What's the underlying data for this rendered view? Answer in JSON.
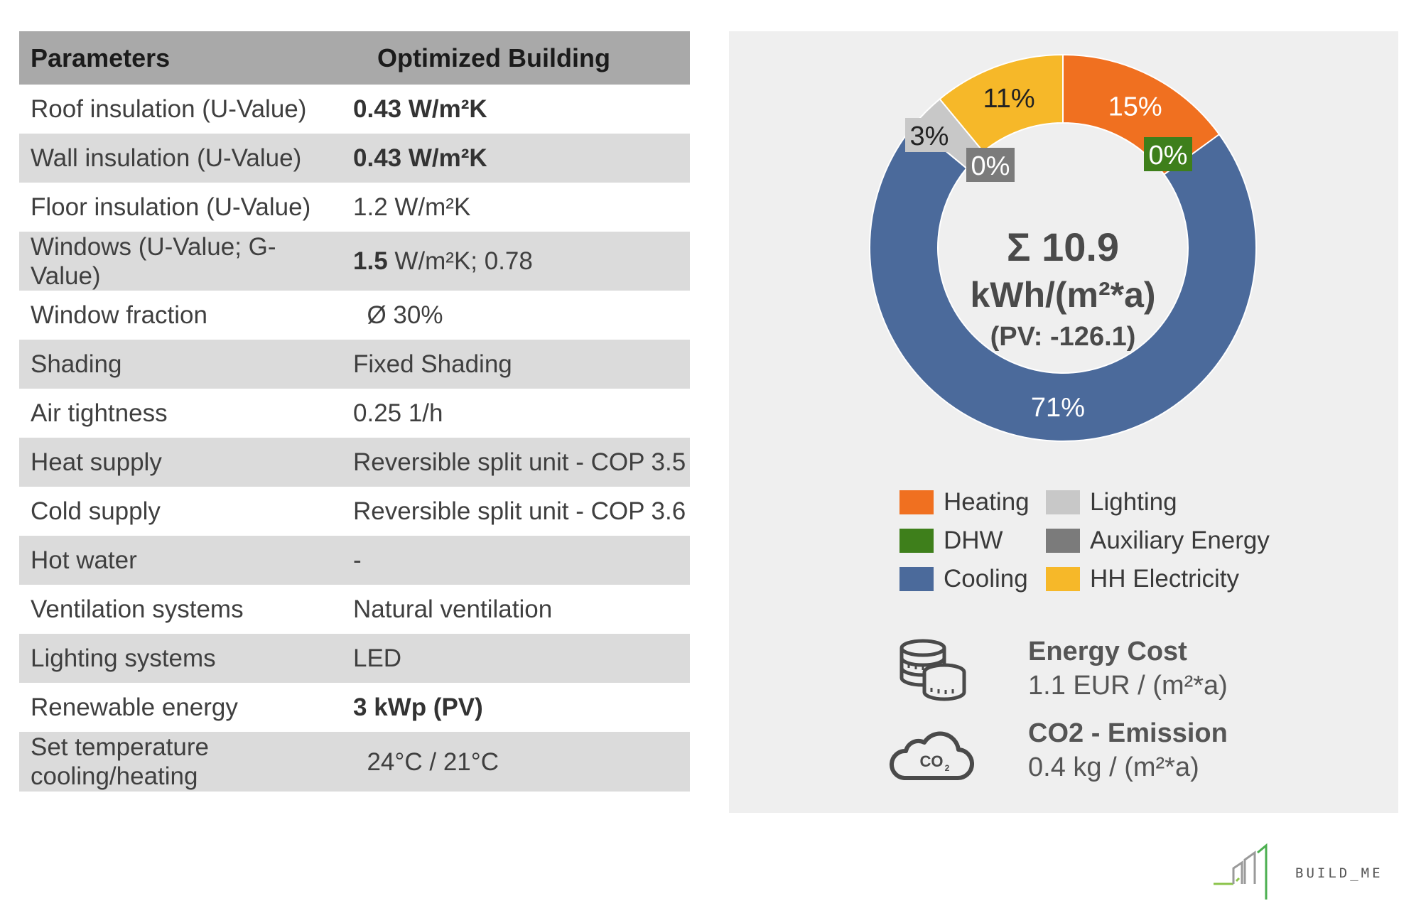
{
  "table": {
    "header": {
      "param": "Parameters",
      "value": "Optimized Building"
    },
    "rows": [
      {
        "param": "Roof insulation (U-Value)",
        "bold": "0.43 W/m²K",
        "rest": ""
      },
      {
        "param": "Wall insulation (U-Value)",
        "bold": "0.43 W/m²K",
        "rest": ""
      },
      {
        "param": "Floor insulation (U-Value)",
        "bold": "",
        "rest": "1.2 W/m²K"
      },
      {
        "param": "Windows (U-Value; G-Value)",
        "bold": "1.5",
        "rest": " W/m²K; 0.78"
      },
      {
        "param": "Window fraction",
        "bold": "",
        "rest": "  Ø 30%"
      },
      {
        "param": "Shading",
        "bold": "",
        "rest": "Fixed Shading"
      },
      {
        "param": "Air tightness",
        "bold": "",
        "rest": "0.25 1/h"
      },
      {
        "param": "Heat supply",
        "bold": "",
        "rest": "Reversible split unit - COP 3.5"
      },
      {
        "param": "Cold supply",
        "bold": "",
        "rest": "Reversible split unit - COP 3.6"
      },
      {
        "param": "Hot water",
        "bold": "",
        "rest": "-"
      },
      {
        "param": "Ventilation systems",
        "bold": "",
        "rest": "Natural ventilation"
      },
      {
        "param": "Lighting systems",
        "bold": "",
        "rest": "LED"
      },
      {
        "param": "Renewable energy",
        "bold": "3 kWp (PV)",
        "rest": ""
      },
      {
        "param": "Set temperature cooling/heating",
        "bold": "",
        "rest": "  24°C / 21°C"
      }
    ]
  },
  "chart_data": {
    "type": "pie",
    "donut": true,
    "series": [
      {
        "name": "Heating",
        "value": 15,
        "label": "15%",
        "color": "#f07020"
      },
      {
        "name": "DHW",
        "value": 0,
        "label": "0%",
        "color": "#3e7f1b"
      },
      {
        "name": "Cooling",
        "value": 71,
        "label": "71%",
        "color": "#4b6a9b"
      },
      {
        "name": "Auxiliary Energy",
        "value": 0,
        "label": "0%",
        "color": "#7b7b7b"
      },
      {
        "name": "Lighting",
        "value": 3,
        "label": "3%",
        "color": "#c8c8c8"
      },
      {
        "name": "HH Electricity",
        "value": 11,
        "label": "11%",
        "color": "#f6b829"
      }
    ],
    "legend": [
      "Heating",
      "Lighting",
      "DHW",
      "Auxiliary Energy",
      "Cooling",
      "HH Electricity"
    ],
    "center": {
      "line1": "Σ 10.9",
      "line2": "kWh/(m²*a)",
      "line3": "(PV: -126.1)"
    }
  },
  "kpis": {
    "cost": {
      "icon": "coins-icon",
      "title": "Energy Cost",
      "value": "1.1 EUR / (m²*a)"
    },
    "co2": {
      "icon": "co2-cloud-icon",
      "title": "CO2 - Emission",
      "value": "0.4 kg / (m²*a)",
      "icon_text": "CO2"
    }
  },
  "logo": {
    "text": "BUILD_ME",
    "icon": "build-me-logo-icon"
  }
}
